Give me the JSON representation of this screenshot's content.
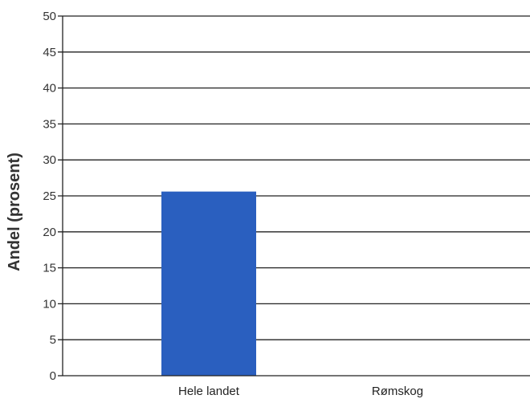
{
  "chart_data": {
    "type": "bar",
    "categories": [
      "Hele landet",
      "Rømskog"
    ],
    "values": [
      25.6,
      null
    ],
    "title": "",
    "xlabel": "",
    "ylabel": "Andel (prosent)",
    "ylim": [
      0,
      50
    ],
    "yticks": [
      0,
      5,
      10,
      15,
      20,
      25,
      30,
      35,
      40,
      45,
      50
    ],
    "grid": true,
    "bar_color": "#2a5fbf",
    "grid_color": "#222222"
  }
}
